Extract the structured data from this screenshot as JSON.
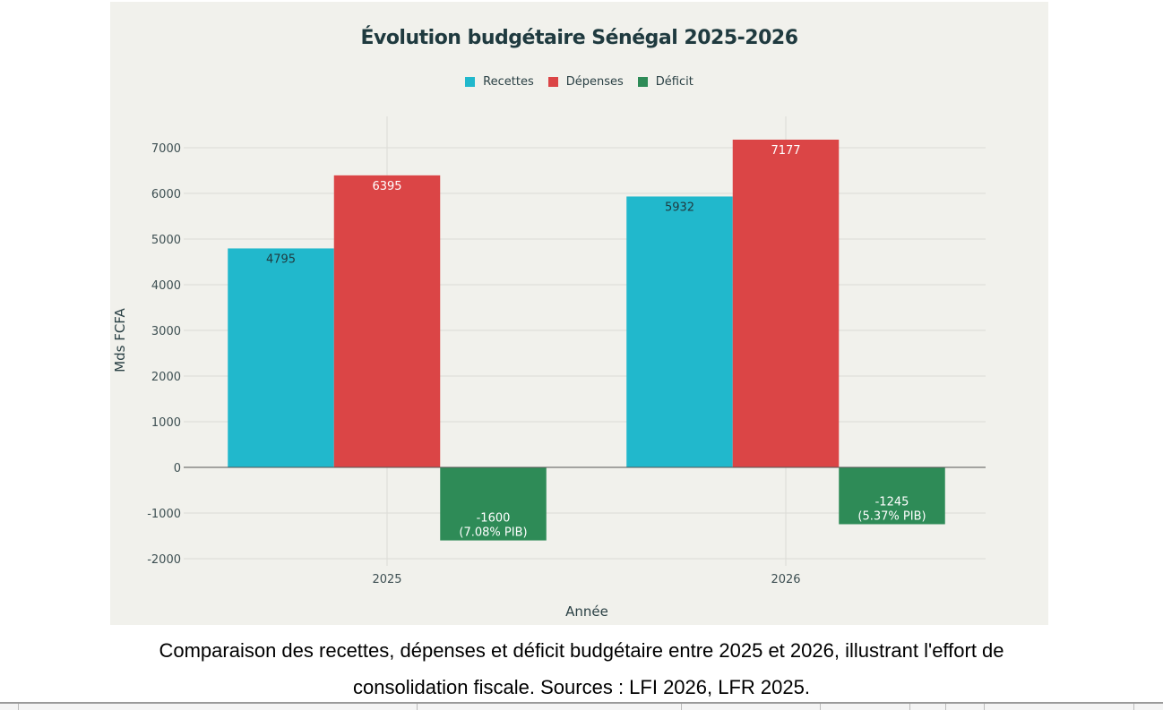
{
  "chart_data": {
    "type": "bar",
    "title": "Évolution budgétaire Sénégal 2025-2026",
    "xlabel": "Année",
    "ylabel": "Mds FCFA",
    "categories": [
      "2025",
      "2026"
    ],
    "series": [
      {
        "name": "Recettes",
        "color": "#21b8cc",
        "values": [
          4795,
          5932
        ],
        "labels": [
          "4795",
          "5932"
        ]
      },
      {
        "name": "Dépenses",
        "color": "#db4546",
        "values": [
          6395,
          7177
        ],
        "labels": [
          "6395",
          "7177"
        ]
      },
      {
        "name": "Déficit",
        "color": "#2e8b57",
        "values": [
          -1600,
          -1245
        ],
        "labels": [
          "-1600\n(7.08% PIB)",
          "-1245\n(5.37% PIB)"
        ]
      }
    ],
    "ylim": [
      -2000,
      7000
    ],
    "yticks": [
      -2000,
      -1000,
      0,
      1000,
      2000,
      3000,
      4000,
      5000,
      6000,
      7000
    ],
    "grid": true,
    "legend_position": "top-center"
  },
  "caption": "Comparaison des recettes, dépenses et déficit budgétaire entre 2025 et 2026, illustrant l'effort de consolidation fiscale. Sources : LFI 2026, LFR 2025."
}
